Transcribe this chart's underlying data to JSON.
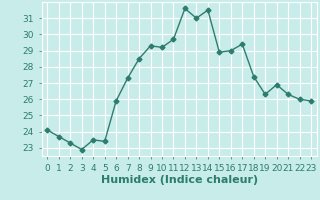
{
  "x": [
    0,
    1,
    2,
    3,
    4,
    5,
    6,
    7,
    8,
    9,
    10,
    11,
    12,
    13,
    14,
    15,
    16,
    17,
    18,
    19,
    20,
    21,
    22,
    23
  ],
  "y": [
    24.1,
    23.7,
    23.3,
    22.9,
    23.5,
    23.4,
    25.9,
    27.3,
    28.5,
    29.3,
    29.2,
    29.7,
    31.6,
    31.0,
    31.5,
    28.9,
    29.0,
    29.4,
    27.4,
    26.3,
    26.9,
    26.3,
    26.0,
    25.9
  ],
  "line_color": "#2d7d6e",
  "marker": "D",
  "marker_size": 2.5,
  "bg_color": "#c8ecea",
  "grid_color": "#ffffff",
  "xlabel": "Humidex (Indice chaleur)",
  "xlim": [
    -0.5,
    23.5
  ],
  "ylim": [
    22.5,
    32.0
  ],
  "yticks": [
    23,
    24,
    25,
    26,
    27,
    28,
    29,
    30,
    31
  ],
  "xticks": [
    0,
    1,
    2,
    3,
    4,
    5,
    6,
    7,
    8,
    9,
    10,
    11,
    12,
    13,
    14,
    15,
    16,
    17,
    18,
    19,
    20,
    21,
    22,
    23
  ],
  "tick_label_fontsize": 6.5,
  "xlabel_fontsize": 8,
  "tick_color": "#2d7d6e",
  "label_color": "#2d7d6e"
}
